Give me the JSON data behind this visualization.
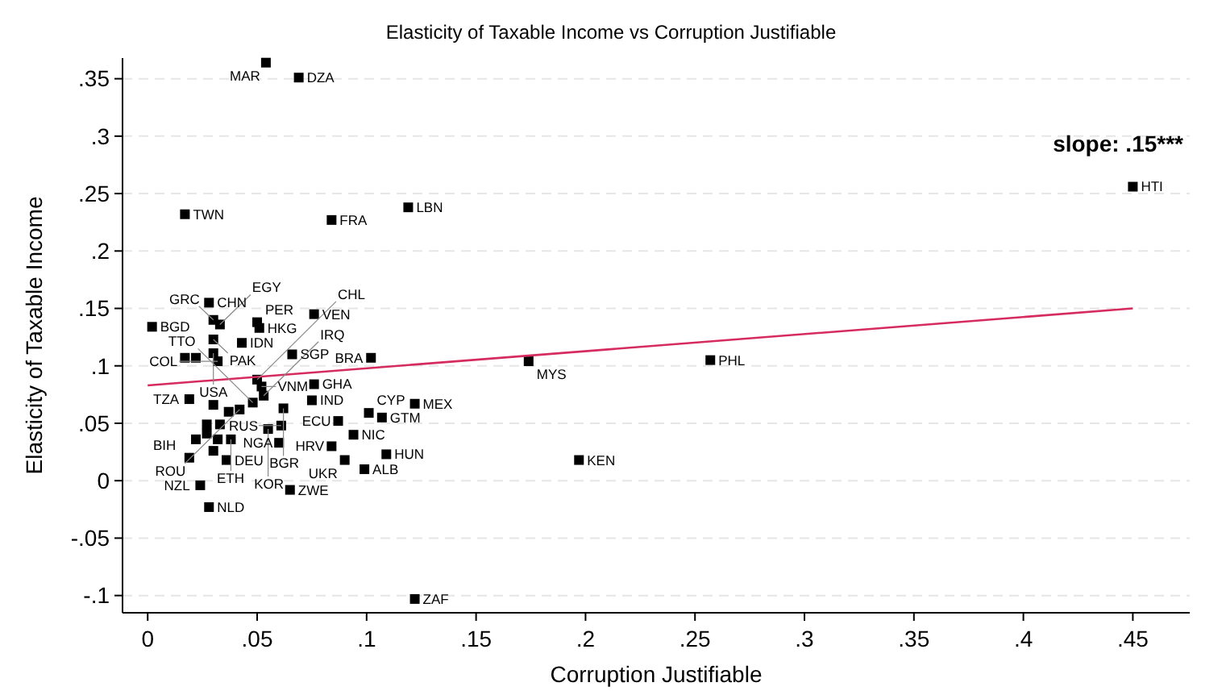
{
  "chart_data": {
    "type": "scatter",
    "title": "Elasticity of Taxable Income vs Corruption Justifiable",
    "xlabel": "Corruption Justifiable",
    "ylabel": "Elasticity of Taxable Income",
    "xlim": [
      -0.0115,
      0.476
    ],
    "ylim": [
      -0.115,
      0.368
    ],
    "xticks": [
      0,
      {
        "value": 0.05,
        "label": ".05"
      },
      {
        "value": 0.1,
        "label": ".1"
      },
      {
        "value": 0.15,
        "label": ".15"
      },
      {
        "value": 0.2,
        "label": ".2"
      },
      {
        "value": 0.25,
        "label": ".25"
      },
      {
        "value": 0.3,
        "label": ".3"
      },
      {
        "value": 0.35,
        "label": ".35"
      },
      {
        "value": 0.4,
        "label": ".4"
      },
      {
        "value": 0.45,
        "label": ".45"
      }
    ],
    "yticks": [
      {
        "value": -0.1,
        "label": "-.1"
      },
      {
        "value": -0.05,
        "label": "-.05"
      },
      0,
      {
        "value": 0.05,
        "label": ".05"
      },
      {
        "value": 0.1,
        "label": ".1"
      },
      {
        "value": 0.15,
        "label": ".15"
      },
      {
        "value": 0.2,
        "label": ".2"
      },
      {
        "value": 0.25,
        "label": ".25"
      },
      {
        "value": 0.3,
        "label": ".3"
      },
      {
        "value": 0.35,
        "label": ".35"
      }
    ],
    "grid": "y",
    "marker": "square",
    "series": [
      {
        "color": "#000000",
        "x": [
          0.054,
          0.069,
          0.45,
          0.017,
          0.119,
          0.084,
          0.028,
          0.076,
          0.002,
          0.03,
          0.033,
          0.05,
          0.051,
          0.03,
          0.043,
          0.066,
          0.102,
          0.03,
          0.017,
          0.022,
          0.032,
          0.174,
          0.257,
          0.197,
          0.122,
          0.107,
          0.101,
          0.087,
          0.094,
          0.084,
          0.109,
          0.09,
          0.099,
          0.065,
          0.06,
          0.075,
          0.076,
          0.062,
          0.053,
          0.052,
          0.05,
          0.061,
          0.055,
          0.048,
          0.019,
          0.042,
          0.03,
          0.037,
          0.027,
          0.033,
          0.027,
          0.022,
          0.032,
          0.038,
          0.03,
          0.019,
          0.036,
          0.024,
          0.028,
          0.122
        ],
        "values": [
          0.364,
          0.351,
          0.256,
          0.232,
          0.238,
          0.227,
          0.155,
          0.145,
          0.134,
          0.14,
          0.136,
          0.138,
          0.133,
          0.123,
          0.12,
          0.11,
          0.107,
          0.111,
          0.107,
          0.107,
          0.104,
          0.104,
          0.105,
          0.018,
          0.067,
          0.055,
          0.059,
          0.052,
          0.04,
          0.03,
          0.023,
          0.018,
          0.01,
          -0.008,
          0.033,
          0.07,
          0.084,
          0.063,
          0.074,
          0.082,
          0.088,
          0.048,
          0.045,
          0.068,
          0.071,
          0.062,
          0.066,
          0.06,
          0.049,
          0.049,
          0.041,
          0.036,
          0.036,
          0.036,
          0.026,
          0.02,
          0.018,
          -0.004,
          -0.023,
          -0.103
        ]
      },
      {
        "type": "line",
        "marker": "none",
        "color": "#d62b5e",
        "x": [
          0,
          0.45
        ],
        "values": [
          0.083,
          0.15
        ]
      }
    ],
    "annotations": [
      "slope: .15***",
      {
        "text": "MAR",
        "x": 0.054,
        "y": 0.364
      },
      {
        "text": "DZA",
        "x": 0.069,
        "y": 0.351
      },
      {
        "text": "HTI",
        "x": 0.45,
        "y": 0.256
      },
      {
        "text": "TWN",
        "x": 0.017,
        "y": 0.232
      },
      {
        "text": "LBN",
        "x": 0.119,
        "y": 0.238
      },
      {
        "text": "FRA",
        "x": 0.084,
        "y": 0.227
      },
      {
        "text": "CHN",
        "x": 0.028,
        "y": 0.155
      },
      {
        "text": "VEN",
        "x": 0.076,
        "y": 0.145
      },
      {
        "text": "BGD",
        "x": 0.002,
        "y": 0.134
      },
      {
        "text": "GRC",
        "x": 0.03,
        "y": 0.14
      },
      {
        "text": "EGY",
        "x": 0.033,
        "y": 0.136
      },
      {
        "text": "PER",
        "x": 0.05,
        "y": 0.138
      },
      {
        "text": "HKG",
        "x": 0.051,
        "y": 0.133
      },
      {
        "text": "PAK",
        "x": 0.03,
        "y": 0.123
      },
      {
        "text": "IDN",
        "x": 0.043,
        "y": 0.12
      },
      {
        "text": "SGP",
        "x": 0.066,
        "y": 0.11
      },
      {
        "text": "BRA",
        "x": 0.102,
        "y": 0.107
      },
      {
        "text": "USA",
        "x": 0.03,
        "y": 0.111
      },
      {
        "text": "COL",
        "x": 0.032,
        "y": 0.104
      },
      {
        "text": "MYS",
        "x": 0.174,
        "y": 0.104
      },
      {
        "text": "PHL",
        "x": 0.257,
        "y": 0.105
      },
      {
        "text": "KEN",
        "x": 0.197,
        "y": 0.018
      },
      {
        "text": "MEX",
        "x": 0.122,
        "y": 0.067
      },
      {
        "text": "GTM",
        "x": 0.107,
        "y": 0.055
      },
      {
        "text": "CYP",
        "x": 0.101,
        "y": 0.059
      },
      {
        "text": "ECU",
        "x": 0.087,
        "y": 0.052
      },
      {
        "text": "NIC",
        "x": 0.094,
        "y": 0.04
      },
      {
        "text": "HRV",
        "x": 0.084,
        "y": 0.03
      },
      {
        "text": "HUN",
        "x": 0.109,
        "y": 0.023
      },
      {
        "text": "UKR",
        "x": 0.09,
        "y": 0.018
      },
      {
        "text": "ALB",
        "x": 0.099,
        "y": 0.01
      },
      {
        "text": "ZWE",
        "x": 0.065,
        "y": -0.008
      },
      {
        "text": "NGA",
        "x": 0.06,
        "y": 0.033
      },
      {
        "text": "IND",
        "x": 0.075,
        "y": 0.07
      },
      {
        "text": "GHA",
        "x": 0.076,
        "y": 0.084
      },
      {
        "text": "BGR",
        "x": 0.062,
        "y": 0.063
      },
      {
        "text": "IRQ",
        "x": 0.053,
        "y": 0.074
      },
      {
        "text": "VNM",
        "x": 0.052,
        "y": 0.082
      },
      {
        "text": "CHL",
        "x": 0.05,
        "y": 0.088
      },
      {
        "text": "RUS",
        "x": 0.061,
        "y": 0.048
      },
      {
        "text": "KOR",
        "x": 0.055,
        "y": 0.045
      },
      {
        "text": "TTO",
        "x": 0.048,
        "y": 0.068
      },
      {
        "text": "TZA",
        "x": 0.019,
        "y": 0.071
      },
      {
        "text": "ROU",
        "x": 0.042,
        "y": 0.062
      },
      {
        "text": "ETH",
        "x": 0.038,
        "y": 0.036
      },
      {
        "text": "BIH",
        "x": 0.019,
        "y": 0.02
      },
      {
        "text": "DEU",
        "x": 0.036,
        "y": 0.018
      },
      {
        "text": "NZL",
        "x": 0.024,
        "y": -0.004
      },
      {
        "text": "NLD",
        "x": 0.028,
        "y": -0.023
      },
      {
        "text": "ZAF",
        "x": 0.122,
        "y": -0.103
      }
    ]
  }
}
